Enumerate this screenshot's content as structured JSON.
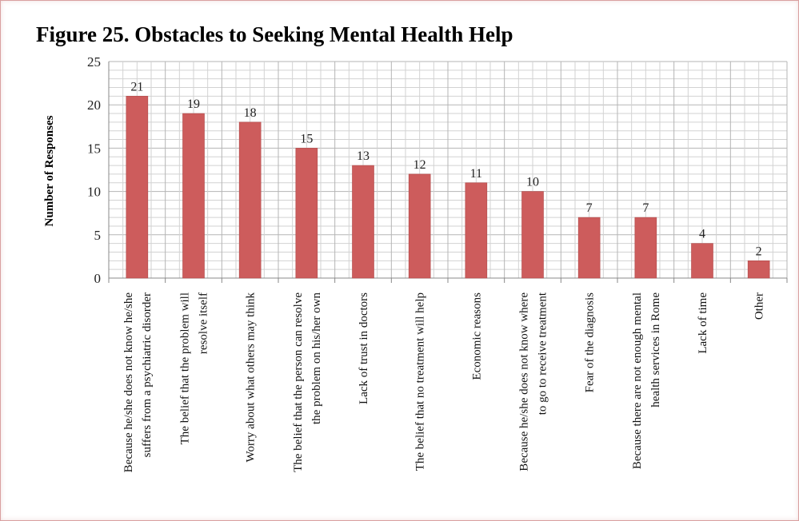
{
  "chart_data": {
    "type": "bar",
    "title": "Figure 25. Obstacles to Seeking Mental Health Help",
    "ylabel": "Number of Responses",
    "xlabel": "",
    "ylim": [
      0,
      25
    ],
    "yticks": [
      0,
      5,
      10,
      15,
      20,
      25
    ],
    "grid": true,
    "legend": "none",
    "bar_color": "#cd5c5c",
    "categories": [
      [
        "Because he/she does not know he/she",
        "suffers from a psychiatric disorder"
      ],
      [
        "The belief that the problem will",
        "resolve itself"
      ],
      [
        "Worry about what others may think"
      ],
      [
        "The belief that the person can resolve",
        "the problem on his/her own"
      ],
      [
        "Lack of trust in doctors"
      ],
      [
        "The belief that no treatment will help"
      ],
      [
        "Economic reasons"
      ],
      [
        "Because he/she does not know where",
        "to go to receive treatment"
      ],
      [
        "Fear of the diagnosis"
      ],
      [
        "Because there are not enough mental",
        "health services in Rome"
      ],
      [
        "Lack of time"
      ],
      [
        "Other"
      ]
    ],
    "values": [
      21,
      19,
      18,
      15,
      13,
      12,
      11,
      10,
      7,
      7,
      4,
      2
    ]
  }
}
